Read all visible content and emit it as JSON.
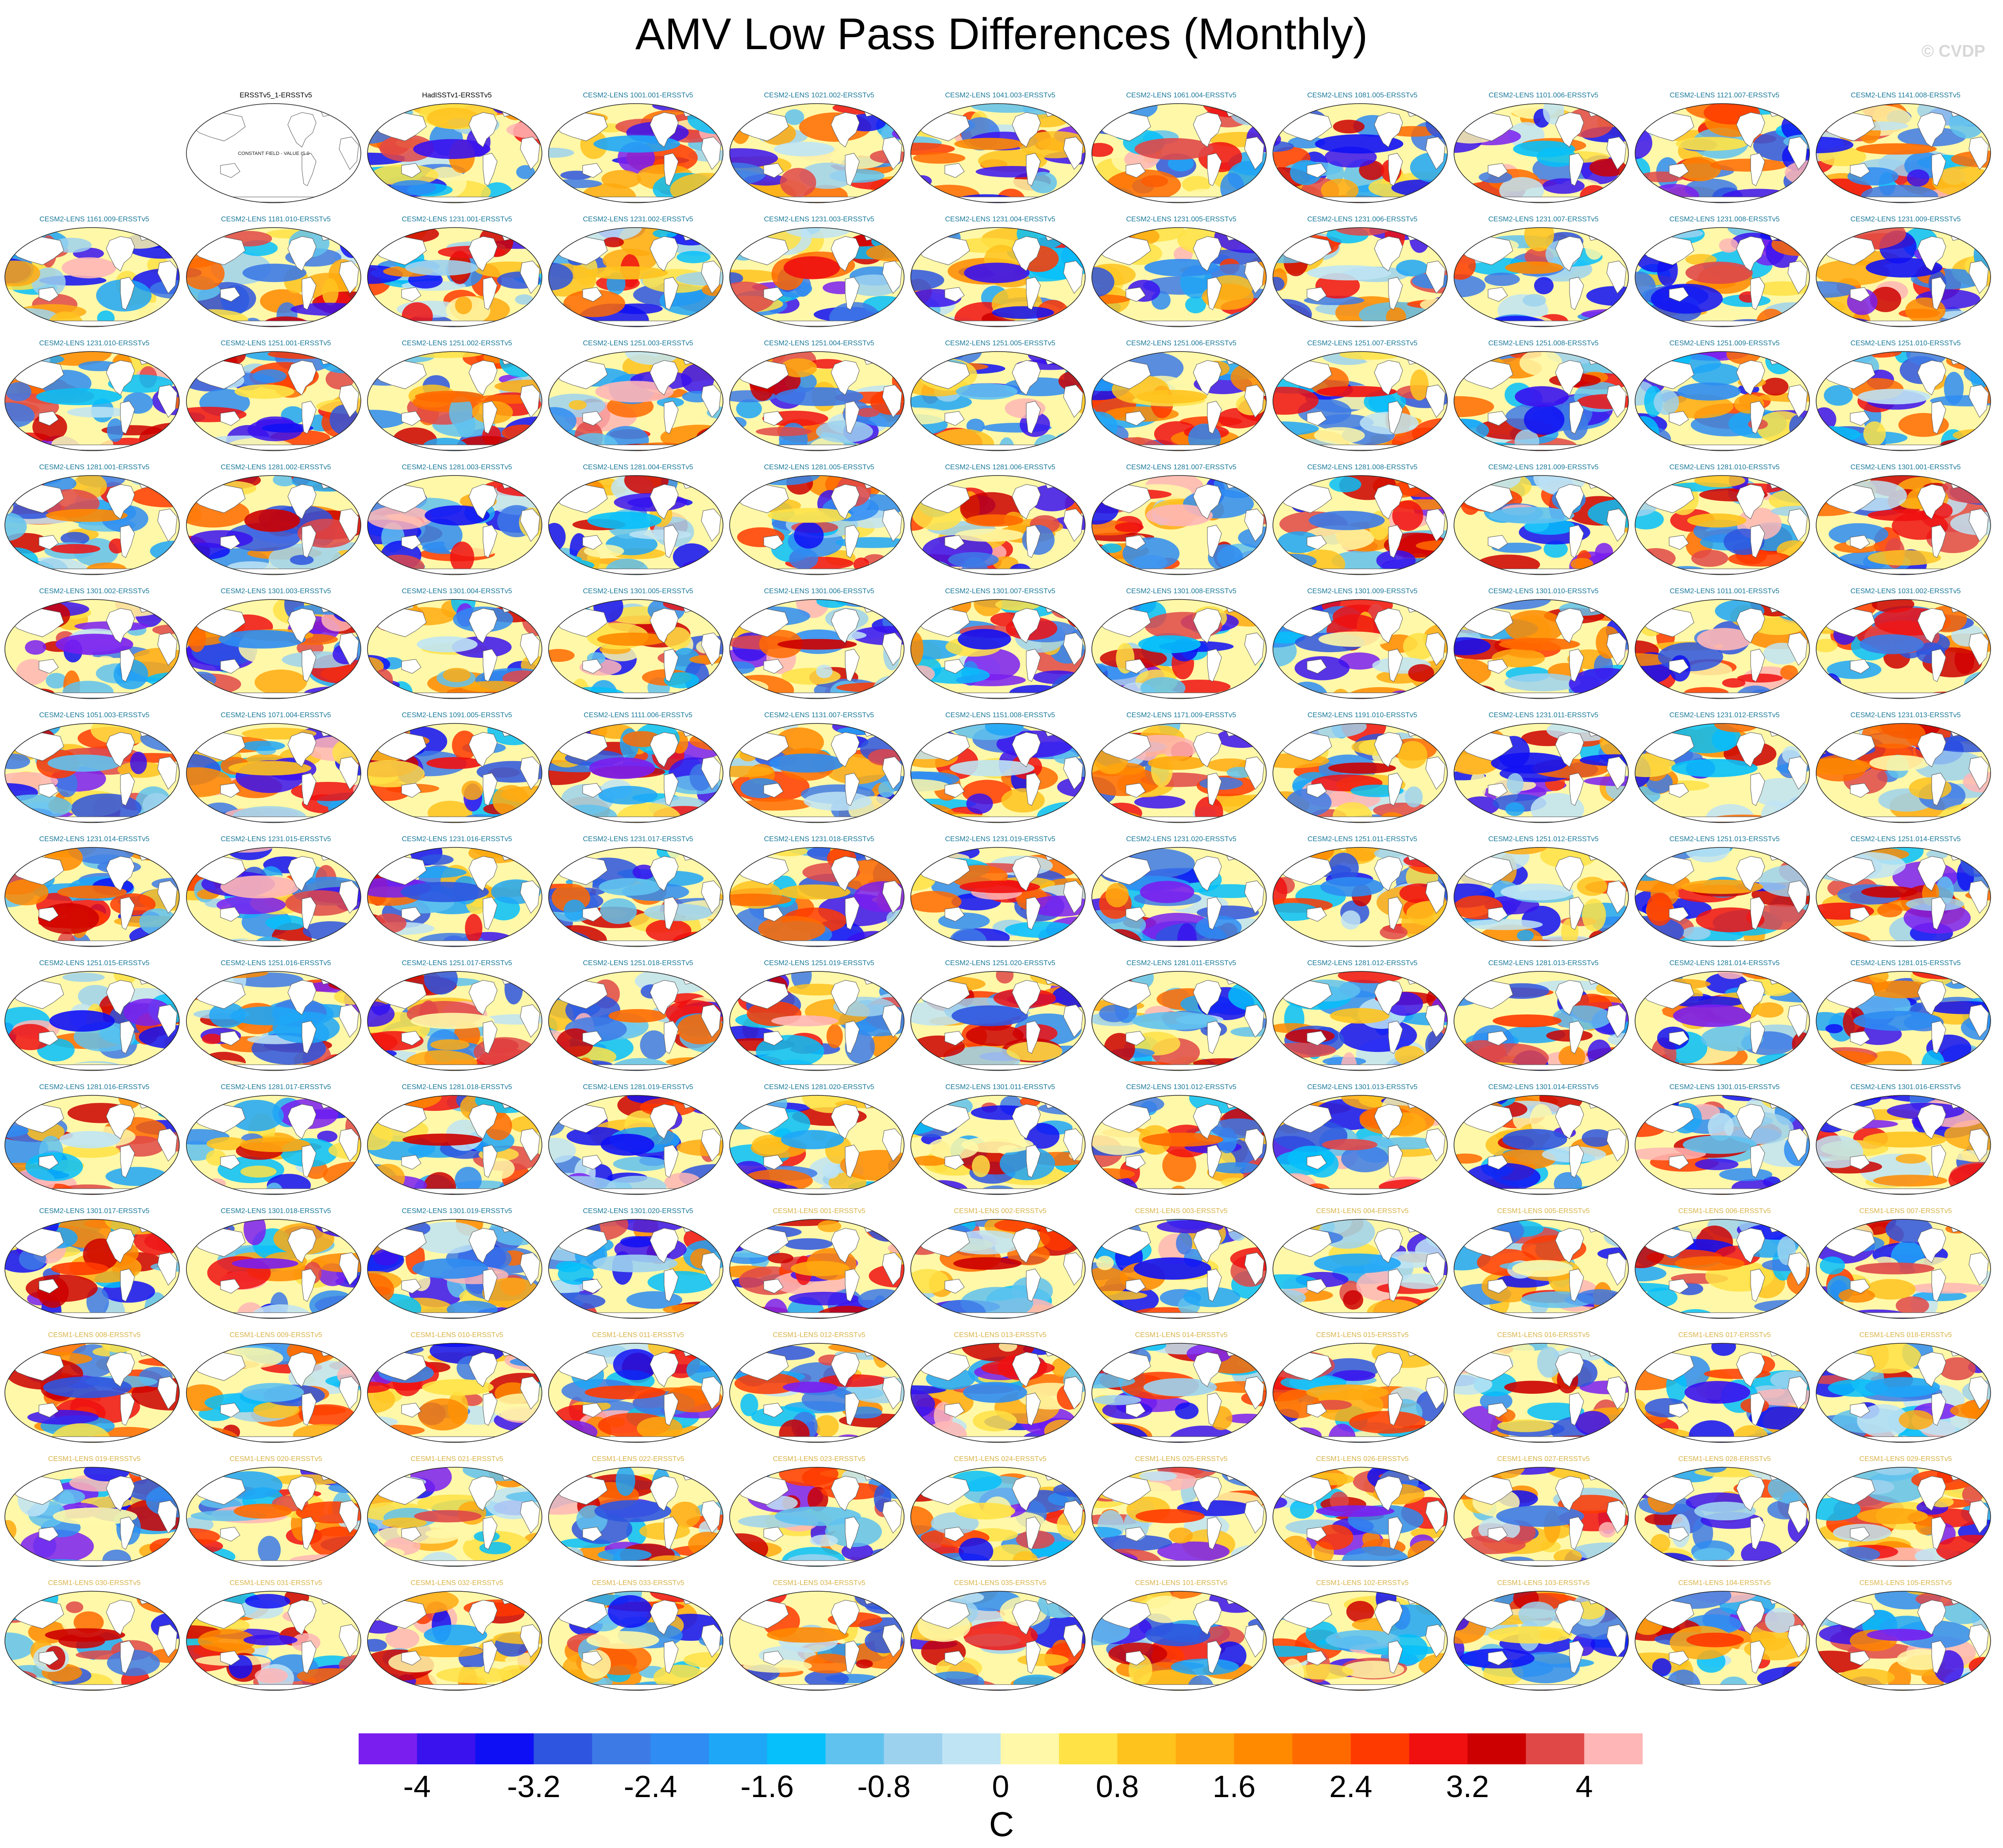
{
  "title": "AMV Low Pass Differences (Monthly)",
  "watermark": "© CVDP",
  "colors": {
    "title_cesm2": "#1b7a9a",
    "title_cesm1": "#d9b44a",
    "title_obs": "#000000",
    "land": "#ffffff",
    "coast": "#555555"
  },
  "chart_data": {
    "type": "heatmap",
    "grid": {
      "rows": 14,
      "cols": 11
    },
    "panels": [
      {
        "title": "ERSSTv5_1-ERSSTv5",
        "group": "obs",
        "note": "CONSTANT FIELD - VALUE IS 0"
      },
      {
        "title": "HadISSTv1-ERSSTv5",
        "group": "obs"
      },
      {
        "title": "CESM2-LENS 1001.001-ERSSTv5",
        "group": "cesm2"
      },
      {
        "title": "CESM2-LENS 1021.002-ERSSTv5",
        "group": "cesm2"
      },
      {
        "title": "CESM2-LENS 1041.003-ERSSTv5",
        "group": "cesm2"
      },
      {
        "title": "CESM2-LENS 1061.004-ERSSTv5",
        "group": "cesm2"
      },
      {
        "title": "CESM2-LENS 1081.005-ERSSTv5",
        "group": "cesm2"
      },
      {
        "title": "CESM2-LENS 1101.006-ERSSTv5",
        "group": "cesm2"
      },
      {
        "title": "CESM2-LENS 1121.007-ERSSTv5",
        "group": "cesm2"
      },
      {
        "title": "CESM2-LENS 1141.008-ERSSTv5",
        "group": "cesm2"
      },
      {
        "title": "CESM2-LENS 1161.009-ERSSTv5",
        "group": "cesm2"
      },
      {
        "title": "CESM2-LENS 1181.010-ERSSTv5",
        "group": "cesm2"
      },
      {
        "title": "CESM2-LENS 1231.001-ERSSTv5",
        "group": "cesm2"
      },
      {
        "title": "CESM2-LENS 1231.002-ERSSTv5",
        "group": "cesm2"
      },
      {
        "title": "CESM2-LENS 1231.003-ERSSTv5",
        "group": "cesm2"
      },
      {
        "title": "CESM2-LENS 1231.004-ERSSTv5",
        "group": "cesm2"
      },
      {
        "title": "CESM2-LENS 1231.005-ERSSTv5",
        "group": "cesm2"
      },
      {
        "title": "CESM2-LENS 1231.006-ERSSTv5",
        "group": "cesm2"
      },
      {
        "title": "CESM2-LENS 1231.007-ERSSTv5",
        "group": "cesm2"
      },
      {
        "title": "CESM2-LENS 1231.008-ERSSTv5",
        "group": "cesm2"
      },
      {
        "title": "CESM2-LENS 1231.009-ERSSTv5",
        "group": "cesm2"
      },
      {
        "title": "CESM2-LENS 1231.010-ERSSTv5",
        "group": "cesm2"
      },
      {
        "title": "CESM2-LENS 1251.001-ERSSTv5",
        "group": "cesm2"
      },
      {
        "title": "CESM2-LENS 1251.002-ERSSTv5",
        "group": "cesm2"
      },
      {
        "title": "CESM2-LENS 1251.003-ERSSTv5",
        "group": "cesm2"
      },
      {
        "title": "CESM2-LENS 1251.004-ERSSTv5",
        "group": "cesm2"
      },
      {
        "title": "CESM2-LENS 1251.005-ERSSTv5",
        "group": "cesm2"
      },
      {
        "title": "CESM2-LENS 1251.006-ERSSTv5",
        "group": "cesm2"
      },
      {
        "title": "CESM2-LENS 1251.007-ERSSTv5",
        "group": "cesm2"
      },
      {
        "title": "CESM2-LENS 1251.008-ERSSTv5",
        "group": "cesm2"
      },
      {
        "title": "CESM2-LENS 1251.009-ERSSTv5",
        "group": "cesm2"
      },
      {
        "title": "CESM2-LENS 1251.010-ERSSTv5",
        "group": "cesm2"
      },
      {
        "title": "CESM2-LENS 1281.001-ERSSTv5",
        "group": "cesm2"
      },
      {
        "title": "CESM2-LENS 1281.002-ERSSTv5",
        "group": "cesm2"
      },
      {
        "title": "CESM2-LENS 1281.003-ERSSTv5",
        "group": "cesm2"
      },
      {
        "title": "CESM2-LENS 1281.004-ERSSTv5",
        "group": "cesm2"
      },
      {
        "title": "CESM2-LENS 1281.005-ERSSTv5",
        "group": "cesm2"
      },
      {
        "title": "CESM2-LENS 1281.006-ERSSTv5",
        "group": "cesm2"
      },
      {
        "title": "CESM2-LENS 1281.007-ERSSTv5",
        "group": "cesm2"
      },
      {
        "title": "CESM2-LENS 1281.008-ERSSTv5",
        "group": "cesm2"
      },
      {
        "title": "CESM2-LENS 1281.009-ERSSTv5",
        "group": "cesm2"
      },
      {
        "title": "CESM2-LENS 1281.010-ERSSTv5",
        "group": "cesm2"
      },
      {
        "title": "CESM2-LENS 1301.001-ERSSTv5",
        "group": "cesm2"
      },
      {
        "title": "CESM2-LENS 1301.002-ERSSTv5",
        "group": "cesm2"
      },
      {
        "title": "CESM2-LENS 1301.003-ERSSTv5",
        "group": "cesm2"
      },
      {
        "title": "CESM2-LENS 1301.004-ERSSTv5",
        "group": "cesm2"
      },
      {
        "title": "CESM2-LENS 1301.005-ERSSTv5",
        "group": "cesm2"
      },
      {
        "title": "CESM2-LENS 1301.006-ERSSTv5",
        "group": "cesm2"
      },
      {
        "title": "CESM2-LENS 1301.007-ERSSTv5",
        "group": "cesm2"
      },
      {
        "title": "CESM2-LENS 1301.008-ERSSTv5",
        "group": "cesm2"
      },
      {
        "title": "CESM2-LENS 1301.009-ERSSTv5",
        "group": "cesm2"
      },
      {
        "title": "CESM2-LENS 1301.010-ERSSTv5",
        "group": "cesm2"
      },
      {
        "title": "CESM2-LENS 1011.001-ERSSTv5",
        "group": "cesm2"
      },
      {
        "title": "CESM2-LENS 1031.002-ERSSTv5",
        "group": "cesm2"
      },
      {
        "title": "CESM2-LENS 1051.003-ERSSTv5",
        "group": "cesm2"
      },
      {
        "title": "CESM2-LENS 1071.004-ERSSTv5",
        "group": "cesm2"
      },
      {
        "title": "CESM2-LENS 1091.005-ERSSTv5",
        "group": "cesm2"
      },
      {
        "title": "CESM2-LENS 1111.006-ERSSTv5",
        "group": "cesm2"
      },
      {
        "title": "CESM2-LENS 1131.007-ERSSTv5",
        "group": "cesm2"
      },
      {
        "title": "CESM2-LENS 1151.008-ERSSTv5",
        "group": "cesm2"
      },
      {
        "title": "CESM2-LENS 1171.009-ERSSTv5",
        "group": "cesm2"
      },
      {
        "title": "CESM2-LENS 1191.010-ERSSTv5",
        "group": "cesm2"
      },
      {
        "title": "CESM2-LENS 1231.011-ERSSTv5",
        "group": "cesm2"
      },
      {
        "title": "CESM2-LENS 1231.012-ERSSTv5",
        "group": "cesm2"
      },
      {
        "title": "CESM2-LENS 1231.013-ERSSTv5",
        "group": "cesm2"
      },
      {
        "title": "CESM2-LENS 1231.014-ERSSTv5",
        "group": "cesm2"
      },
      {
        "title": "CESM2-LENS 1231.015-ERSSTv5",
        "group": "cesm2"
      },
      {
        "title": "CESM2-LENS 1231.016-ERSSTv5",
        "group": "cesm2"
      },
      {
        "title": "CESM2-LENS 1231.017-ERSSTv5",
        "group": "cesm2"
      },
      {
        "title": "CESM2-LENS 1231.018-ERSSTv5",
        "group": "cesm2"
      },
      {
        "title": "CESM2-LENS 1231.019-ERSSTv5",
        "group": "cesm2"
      },
      {
        "title": "CESM2-LENS 1231.020-ERSSTv5",
        "group": "cesm2"
      },
      {
        "title": "CESM2-LENS 1251.011-ERSSTv5",
        "group": "cesm2"
      },
      {
        "title": "CESM2-LENS 1251.012-ERSSTv5",
        "group": "cesm2"
      },
      {
        "title": "CESM2-LENS 1251.013-ERSSTv5",
        "group": "cesm2"
      },
      {
        "title": "CESM2-LENS 1251.014-ERSSTv5",
        "group": "cesm2"
      },
      {
        "title": "CESM2-LENS 1251.015-ERSSTv5",
        "group": "cesm2"
      },
      {
        "title": "CESM2-LENS 1251.016-ERSSTv5",
        "group": "cesm2"
      },
      {
        "title": "CESM2-LENS 1251.017-ERSSTv5",
        "group": "cesm2"
      },
      {
        "title": "CESM2-LENS 1251.018-ERSSTv5",
        "group": "cesm2"
      },
      {
        "title": "CESM2-LENS 1251.019-ERSSTv5",
        "group": "cesm2"
      },
      {
        "title": "CESM2-LENS 1251.020-ERSSTv5",
        "group": "cesm2"
      },
      {
        "title": "CESM2-LENS 1281.011-ERSSTv5",
        "group": "cesm2"
      },
      {
        "title": "CESM2-LENS 1281.012-ERSSTv5",
        "group": "cesm2"
      },
      {
        "title": "CESM2-LENS 1281.013-ERSSTv5",
        "group": "cesm2"
      },
      {
        "title": "CESM2-LENS 1281.014-ERSSTv5",
        "group": "cesm2"
      },
      {
        "title": "CESM2-LENS 1281.015-ERSSTv5",
        "group": "cesm2"
      },
      {
        "title": "CESM2-LENS 1281.016-ERSSTv5",
        "group": "cesm2"
      },
      {
        "title": "CESM2-LENS 1281.017-ERSSTv5",
        "group": "cesm2"
      },
      {
        "title": "CESM2-LENS 1281.018-ERSSTv5",
        "group": "cesm2"
      },
      {
        "title": "CESM2-LENS 1281.019-ERSSTv5",
        "group": "cesm2"
      },
      {
        "title": "CESM2-LENS 1281.020-ERSSTv5",
        "group": "cesm2"
      },
      {
        "title": "CESM2-LENS 1301.011-ERSSTv5",
        "group": "cesm2"
      },
      {
        "title": "CESM2-LENS 1301.012-ERSSTv5",
        "group": "cesm2"
      },
      {
        "title": "CESM2-LENS 1301.013-ERSSTv5",
        "group": "cesm2"
      },
      {
        "title": "CESM2-LENS 1301.014-ERSSTv5",
        "group": "cesm2"
      },
      {
        "title": "CESM2-LENS 1301.015-ERSSTv5",
        "group": "cesm2"
      },
      {
        "title": "CESM2-LENS 1301.016-ERSSTv5",
        "group": "cesm2"
      },
      {
        "title": "CESM2-LENS 1301.017-ERSSTv5",
        "group": "cesm2"
      },
      {
        "title": "CESM2-LENS 1301.018-ERSSTv5",
        "group": "cesm2"
      },
      {
        "title": "CESM2-LENS 1301.019-ERSSTv5",
        "group": "cesm2"
      },
      {
        "title": "CESM2-LENS 1301.020-ERSSTv5",
        "group": "cesm2"
      },
      {
        "title": "CESM1-LENS 001-ERSSTv5",
        "group": "cesm1"
      },
      {
        "title": "CESM1-LENS 002-ERSSTv5",
        "group": "cesm1"
      },
      {
        "title": "CESM1-LENS 003-ERSSTv5",
        "group": "cesm1"
      },
      {
        "title": "CESM1-LENS 004-ERSSTv5",
        "group": "cesm1"
      },
      {
        "title": "CESM1-LENS 005-ERSSTv5",
        "group": "cesm1"
      },
      {
        "title": "CESM1-LENS 006-ERSSTv5",
        "group": "cesm1"
      },
      {
        "title": "CESM1-LENS 007-ERSSTv5",
        "group": "cesm1"
      },
      {
        "title": "CESM1-LENS 008-ERSSTv5",
        "group": "cesm1"
      },
      {
        "title": "CESM1-LENS 009-ERSSTv5",
        "group": "cesm1"
      },
      {
        "title": "CESM1-LENS 010-ERSSTv5",
        "group": "cesm1"
      },
      {
        "title": "CESM1-LENS 011-ERSSTv5",
        "group": "cesm1"
      },
      {
        "title": "CESM1-LENS 012-ERSSTv5",
        "group": "cesm1"
      },
      {
        "title": "CESM1-LENS 013-ERSSTv5",
        "group": "cesm1"
      },
      {
        "title": "CESM1-LENS 014-ERSSTv5",
        "group": "cesm1"
      },
      {
        "title": "CESM1-LENS 015-ERSSTv5",
        "group": "cesm1"
      },
      {
        "title": "CESM1-LENS 016-ERSSTv5",
        "group": "cesm1"
      },
      {
        "title": "CESM1-LENS 017-ERSSTv5",
        "group": "cesm1"
      },
      {
        "title": "CESM1-LENS 018-ERSSTv5",
        "group": "cesm1"
      },
      {
        "title": "CESM1-LENS 019-ERSSTv5",
        "group": "cesm1"
      },
      {
        "title": "CESM1-LENS 020-ERSSTv5",
        "group": "cesm1"
      },
      {
        "title": "CESM1-LENS 021-ERSSTv5",
        "group": "cesm1"
      },
      {
        "title": "CESM1-LENS 022-ERSSTv5",
        "group": "cesm1"
      },
      {
        "title": "CESM1-LENS 023-ERSSTv5",
        "group": "cesm1"
      },
      {
        "title": "CESM1-LENS 024-ERSSTv5",
        "group": "cesm1"
      },
      {
        "title": "CESM1-LENS 025-ERSSTv5",
        "group": "cesm1"
      },
      {
        "title": "CESM1-LENS 026-ERSSTv5",
        "group": "cesm1"
      },
      {
        "title": "CESM1-LENS 027-ERSSTv5",
        "group": "cesm1"
      },
      {
        "title": "CESM1-LENS 028-ERSSTv5",
        "group": "cesm1"
      },
      {
        "title": "CESM1-LENS 029-ERSSTv5",
        "group": "cesm1"
      },
      {
        "title": "CESM1-LENS 030-ERSSTv5",
        "group": "cesm1"
      },
      {
        "title": "CESM1-LENS 031-ERSSTv5",
        "group": "cesm1"
      },
      {
        "title": "CESM1-LENS 032-ERSSTv5",
        "group": "cesm1"
      },
      {
        "title": "CESM1-LENS 033-ERSSTv5",
        "group": "cesm1"
      },
      {
        "title": "CESM1-LENS 034-ERSSTv5",
        "group": "cesm1"
      },
      {
        "title": "CESM1-LENS 035-ERSSTv5",
        "group": "cesm1"
      },
      {
        "title": "CESM1-LENS 101-ERSSTv5",
        "group": "cesm1"
      },
      {
        "title": "CESM1-LENS 102-ERSSTv5",
        "group": "cesm1"
      },
      {
        "title": "CESM1-LENS 103-ERSSTv5",
        "group": "cesm1"
      },
      {
        "title": "CESM1-LENS 104-ERSSTv5",
        "group": "cesm1"
      },
      {
        "title": "CESM1-LENS 105-ERSSTv5",
        "group": "cesm1"
      }
    ],
    "colorbar": {
      "levels": [
        -4.4,
        -4,
        -3.6,
        -3.2,
        -2.8,
        -2.4,
        -2,
        -1.6,
        -1.2,
        -0.8,
        -0.4,
        0,
        0.4,
        0.8,
        1.2,
        1.6,
        2,
        2.4,
        2.8,
        3.2,
        3.6,
        4,
        4.4
      ],
      "colors": [
        "#7a1ef0",
        "#3a12ee",
        "#0f0ff5",
        "#2d55e0",
        "#3d7ae6",
        "#2e8cf2",
        "#1ea6f7",
        "#05c0fa",
        "#60c2ef",
        "#9dd2ef",
        "#bfe4f4",
        "#fff8a8",
        "#ffe245",
        "#ffc31e",
        "#ffaa10",
        "#ff8a00",
        "#ff6a00",
        "#ff3a00",
        "#f01010",
        "#cc0000",
        "#e04848",
        "#ffb6b6"
      ],
      "tick_labels": [
        "-4",
        "-3.2",
        "-2.4",
        "-1.6",
        "-0.8",
        "0",
        "0.8",
        "1.6",
        "2.4",
        "3.2",
        "4"
      ],
      "tick_values": [
        -4,
        -3.2,
        -2.4,
        -1.6,
        -0.8,
        0,
        0.8,
        1.6,
        2.4,
        3.2,
        4
      ],
      "units": "C",
      "range": [
        -4.4,
        4.4
      ]
    }
  }
}
